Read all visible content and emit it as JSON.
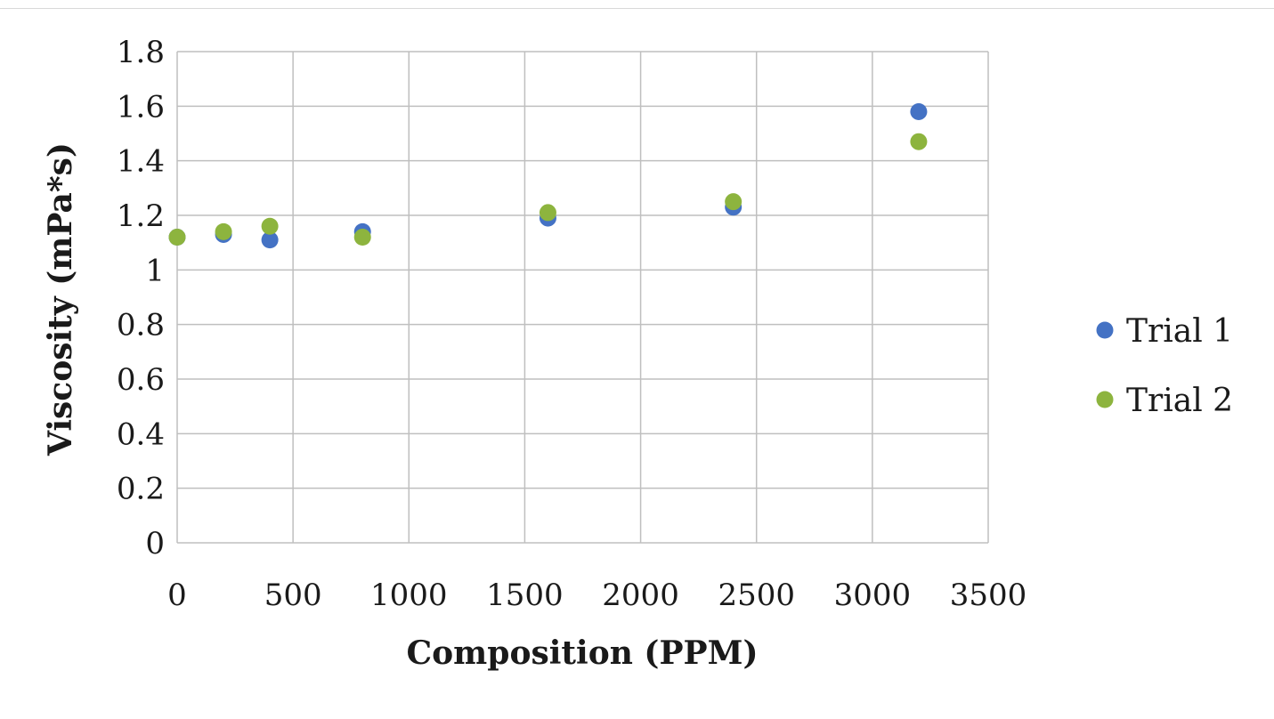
{
  "chart_data": {
    "type": "scatter",
    "xlabel": "Composition (PPM)",
    "ylabel": "Viscosity (mPa*s)",
    "xlim": [
      0,
      3500
    ],
    "ylim": [
      0,
      1.8
    ],
    "x_ticks": [
      "0",
      "500",
      "1000",
      "1500",
      "2000",
      "2500",
      "3000",
      "3500"
    ],
    "y_ticks": [
      "0",
      "0.2",
      "0.4",
      "0.6",
      "0.8",
      "1",
      "1.2",
      "1.4",
      "1.6",
      "1.8"
    ],
    "grid": true,
    "legend_position": "right",
    "series": [
      {
        "name": "Trial 1",
        "color": "#4472c4",
        "x": [
          0,
          200,
          400,
          800,
          1600,
          2400,
          3200
        ],
        "y": [
          1.12,
          1.13,
          1.11,
          1.14,
          1.19,
          1.23,
          1.58
        ]
      },
      {
        "name": "Trial 2",
        "color": "#8db43e",
        "x": [
          0,
          200,
          400,
          800,
          1600,
          2400,
          3200
        ],
        "y": [
          1.12,
          1.14,
          1.16,
          1.12,
          1.21,
          1.25,
          1.47
        ]
      }
    ]
  }
}
